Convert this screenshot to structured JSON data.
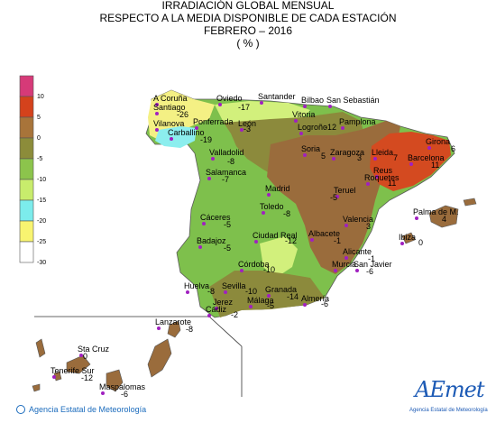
{
  "header": {
    "line1": "IRRADIACIÓN GLOBAL MENSUAL",
    "line2": "RESPECTO A LA MEDIA DISPONIBLE DE CADA ESTACIÓN",
    "line3": "FEBRERO – 2016",
    "line4": "( % )"
  },
  "legend": {
    "labels": [
      "10",
      "5",
      "0",
      "-5",
      "-10",
      "-15",
      "-20",
      "-25",
      "-30"
    ],
    "colors": [
      "#d63a78",
      "#d4421c",
      "#a8743a",
      "#8c8c3a",
      "#8cc44c",
      "#c8ec6c",
      "#7cecec",
      "#f8f470",
      "#ffffff"
    ]
  },
  "colors": {
    "red_zone": "#d44a20",
    "brown_zone": "#9a6c3c",
    "olive_zone": "#8c8a3c",
    "green_zone": "#7ec04c",
    "lightgreen_zone": "#d2f07c",
    "cyan_zone": "#8ceeee",
    "yellow_zone": "#f4f084",
    "station": "#a020c0"
  },
  "stations": [
    {
      "name": "A Coruña",
      "value": ""
    },
    {
      "name": "Santiago",
      "value": "-26"
    },
    {
      "name": "Oviedo",
      "value": "-17"
    },
    {
      "name": "Santander",
      "value": ""
    },
    {
      "name": "Bilbao",
      "value": ""
    },
    {
      "name": "San Sebastián",
      "value": ""
    },
    {
      "name": "Vitoria",
      "value": ""
    },
    {
      "name": "Pamplona",
      "value": ""
    },
    {
      "name": "Logroño",
      "value": "-12"
    },
    {
      "name": "Vilanova",
      "value": ""
    },
    {
      "name": "Ponferrada",
      "value": ""
    },
    {
      "name": "León",
      "value": "-3"
    },
    {
      "name": "Carballino",
      "value": "-19"
    },
    {
      "name": "Valladolid",
      "value": "-8"
    },
    {
      "name": "Soria",
      "value": "5"
    },
    {
      "name": "Zaragoza",
      "value": "3"
    },
    {
      "name": "Lleida",
      "value": "7"
    },
    {
      "name": "Girona",
      "value": "6"
    },
    {
      "name": "Barcelona",
      "value": "11"
    },
    {
      "name": "Reus",
      "value": ""
    },
    {
      "name": "Roquetes",
      "value": "11"
    },
    {
      "name": "Salamanca",
      "value": "-7"
    },
    {
      "name": "Madrid",
      "value": ""
    },
    {
      "name": "Teruel",
      "value": "-5"
    },
    {
      "name": "Toledo",
      "value": "-8"
    },
    {
      "name": "Valencia",
      "value": "3"
    },
    {
      "name": "Palma de M.",
      "value": "4"
    },
    {
      "name": "Cáceres",
      "value": "-5"
    },
    {
      "name": "Ciudad Real",
      "value": "-12"
    },
    {
      "name": "Albacete",
      "value": "-1"
    },
    {
      "name": "Ibiza",
      "value": "0"
    },
    {
      "name": "Badajoz",
      "value": "-5"
    },
    {
      "name": "Alicante",
      "value": "-1"
    },
    {
      "name": "Córdoba",
      "value": "-10"
    },
    {
      "name": "Murcia",
      "value": ""
    },
    {
      "name": "San Javier",
      "value": "-6"
    },
    {
      "name": "Huelva",
      "value": "-8"
    },
    {
      "name": "Sevilla",
      "value": "-10"
    },
    {
      "name": "Granada",
      "value": "-14"
    },
    {
      "name": "Almería",
      "value": "-6"
    },
    {
      "name": "Jerez",
      "value": ""
    },
    {
      "name": "Málaga",
      "value": "-5"
    },
    {
      "name": "Cádiz",
      "value": "-2"
    },
    {
      "name": "Lanzarote",
      "value": "-8"
    },
    {
      "name": "Sta Cruz",
      "value": "0"
    },
    {
      "name": "Tenerife Sur",
      "value": "-12"
    },
    {
      "name": "Maspalomas",
      "value": "-6"
    }
  ],
  "footer": {
    "agency": "Agencia Estatal de Meteorología",
    "logo_word": "AEmet",
    "logo_sub": "Agencia Estatal de Meteorología"
  }
}
